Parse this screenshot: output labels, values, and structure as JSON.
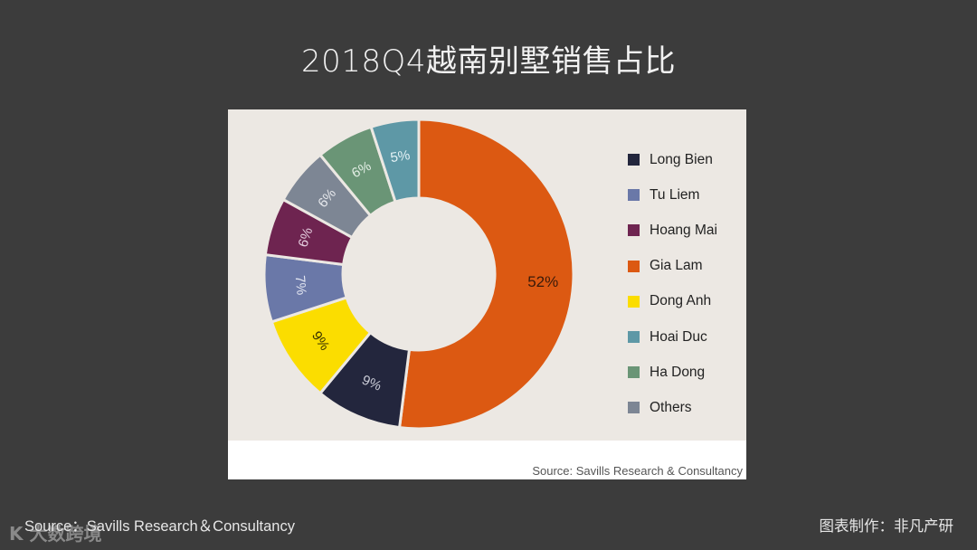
{
  "page": {
    "title": "2018Q4越南别墅销售占比",
    "footer_source": "Source：Savills Research＆Consultancy",
    "footer_credit": "图表制作：非凡产研",
    "watermark": "K 大数跨境"
  },
  "panel": {
    "source": "Source: Savills Research & Consultancy"
  },
  "chart_data": {
    "type": "pie",
    "subtype": "donut",
    "title": "2018Q4越南别墅销售占比",
    "start_angle_deg": 0,
    "direction": "clockwise",
    "legend_position": "right",
    "categories": [
      "Long Bien",
      "Tu Liem",
      "Hoang Mai",
      "Gia Lam",
      "Dong Anh",
      "Hoai Duc",
      "Ha Dong",
      "Others"
    ],
    "values": [
      9,
      7,
      6,
      52,
      9,
      5,
      6,
      6
    ],
    "colors": {
      "Long Bien": "#23263d",
      "Tu Liem": "#6a78a8",
      "Hoang Mai": "#6e2450",
      "Gia Lam": "#dc5912",
      "Dong Anh": "#fbdd00",
      "Hoai Duc": "#5e98a6",
      "Ha Dong": "#6a9576",
      "Others": "#7d8694"
    },
    "slice_order_clockwise_from_top": [
      "Gia Lam",
      "Long Bien",
      "Dong Anh",
      "Tu Liem",
      "Hoang Mai",
      "Others",
      "Ha Dong",
      "Hoai Duc"
    ],
    "labels": {
      "Gia Lam": "52%",
      "Long Bien": "9%",
      "Dong Anh": "9%",
      "Tu Liem": "7%",
      "Hoang Mai": "6%",
      "Others": "6%",
      "Ha Dong": "6%",
      "Hoai Duc": "5%"
    },
    "label_colors": {
      "Gia Lam": "#3a1a0a",
      "Long Bien": "#c9cbd6",
      "Dong Anh": "#3a3300",
      "Tu Liem": "#e4e7f2",
      "Hoang Mai": "#e6cfe0",
      "Others": "#e6e8ec",
      "Ha Dong": "#e4efe6",
      "Hoai Duc": "#e4f2f5"
    },
    "source": "Source: Savills Research & Consultancy"
  }
}
